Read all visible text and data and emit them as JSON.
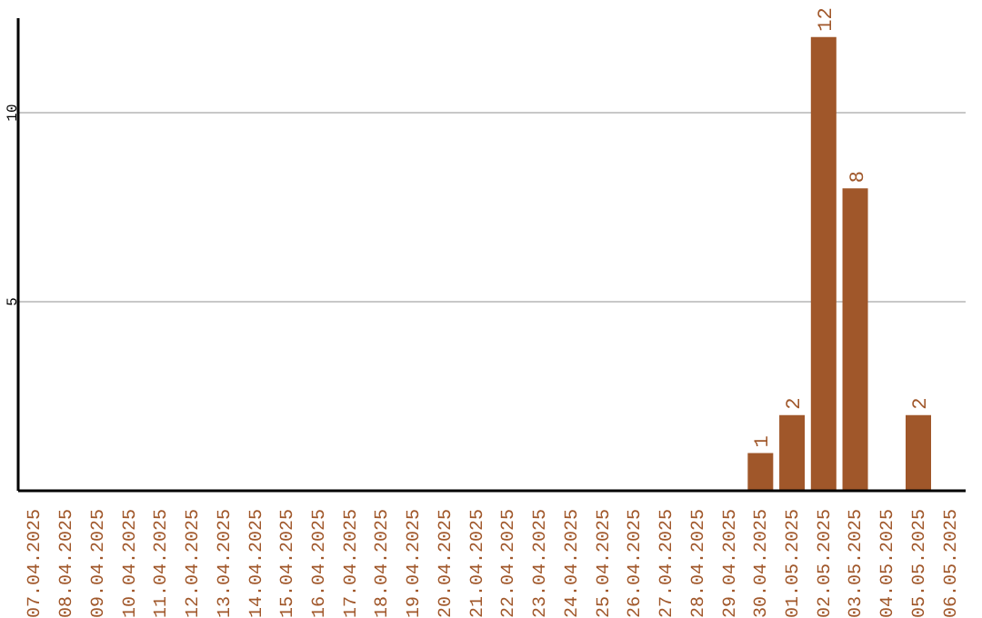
{
  "chart_data": {
    "type": "bar",
    "categories": [
      "07.04.2025",
      "08.04.2025",
      "09.04.2025",
      "10.04.2025",
      "11.04.2025",
      "12.04.2025",
      "13.04.2025",
      "14.04.2025",
      "15.04.2025",
      "16.04.2025",
      "17.04.2025",
      "18.04.2025",
      "19.04.2025",
      "20.04.2025",
      "21.04.2025",
      "22.04.2025",
      "23.04.2025",
      "24.04.2025",
      "25.04.2025",
      "26.04.2025",
      "27.04.2025",
      "28.04.2025",
      "29.04.2025",
      "30.04.2025",
      "01.05.2025",
      "02.05.2025",
      "03.05.2025",
      "04.05.2025",
      "05.05.2025",
      "06.05.2025"
    ],
    "values": [
      0,
      0,
      0,
      0,
      0,
      0,
      0,
      0,
      0,
      0,
      0,
      0,
      0,
      0,
      0,
      0,
      0,
      0,
      0,
      0,
      0,
      0,
      0,
      1,
      2,
      12,
      8,
      0,
      2,
      0
    ],
    "value_labels": [
      null,
      null,
      null,
      null,
      null,
      null,
      null,
      null,
      null,
      null,
      null,
      null,
      null,
      null,
      null,
      null,
      null,
      null,
      null,
      null,
      null,
      null,
      null,
      "1",
      "2",
      "12",
      "8",
      null,
      "2",
      null
    ],
    "color": "#a0572a",
    "ylim": [
      0,
      12.5
    ],
    "yticks": [
      5,
      10
    ],
    "grid": "y"
  }
}
